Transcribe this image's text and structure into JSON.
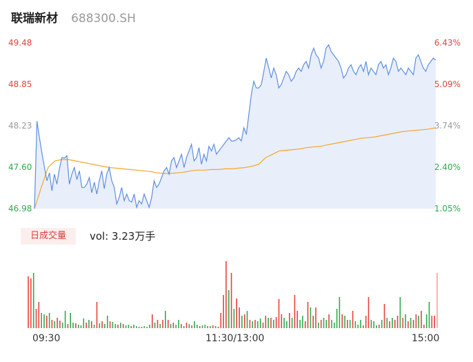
{
  "header": {
    "name": "联瑞新材",
    "code": "688300.SH"
  },
  "chart_data": {
    "type": "line",
    "price_axis": {
      "ticks": [
        "49.48",
        "48.85",
        "48.23",
        "47.60",
        "46.98"
      ],
      "ylim": [
        46.98,
        49.48
      ]
    },
    "pct_axis": {
      "ticks": [
        "6.43%",
        "5.09%",
        "3.74%",
        "2.40%",
        "1.05%"
      ]
    },
    "time_axis": {
      "ticks": [
        "09:30",
        "11:30/13:00",
        "15:00"
      ]
    },
    "series": [
      {
        "role": "price",
        "values": [
          46.98,
          48.3,
          48.05,
          47.82,
          47.6,
          47.4,
          47.52,
          47.25,
          47.5,
          47.35,
          47.58,
          47.75,
          47.74,
          47.78,
          47.35,
          47.5,
          47.6,
          47.42,
          47.55,
          47.3,
          47.3,
          47.35,
          47.45,
          47.22,
          47.38,
          47.2,
          47.4,
          47.55,
          47.28,
          47.5,
          47.6,
          47.4,
          47.3,
          47.05,
          47.15,
          47.3,
          47.1,
          47.2,
          47.1,
          47.08,
          47.2,
          47.0,
          47.1,
          47.05,
          47.2,
          47.1,
          47.0,
          47.15,
          47.4,
          47.3,
          47.35,
          47.45,
          47.55,
          47.6,
          47.5,
          47.7,
          47.75,
          47.6,
          47.7,
          47.8,
          47.6,
          47.75,
          47.85,
          47.95,
          47.7,
          47.75,
          47.9,
          47.65,
          47.8,
          47.7,
          47.92,
          47.85,
          47.95,
          47.8,
          47.85,
          47.9,
          47.95,
          48.0,
          48.05,
          48.0,
          48.0,
          48.02,
          48.05,
          48.0,
          48.2,
          48.1,
          48.4,
          48.7,
          48.9,
          48.8,
          48.8,
          48.85,
          49.05,
          49.25,
          49.1,
          48.95,
          49.1,
          49.0,
          48.8,
          48.85,
          48.95,
          49.05,
          49.0,
          48.9,
          48.95,
          49.05,
          49.1,
          49.05,
          49.15,
          49.2,
          49.1,
          49.3,
          49.4,
          49.3,
          49.25,
          49.1,
          49.2,
          49.4,
          49.45,
          49.35,
          49.3,
          49.25,
          49.2,
          49.1,
          48.95,
          49.0,
          49.1,
          49.15,
          49.05,
          49.0,
          49.1,
          49.15,
          49.05,
          49.2,
          49.0,
          49.1,
          49.05,
          49.0,
          49.15,
          49.2,
          49.1,
          49.15,
          49.0,
          49.1,
          49.25,
          49.2,
          49.05,
          49.1,
          49.05,
          49.0,
          49.1,
          49.05,
          49.0,
          49.25,
          49.3,
          49.2,
          49.1,
          49.05,
          49.15,
          49.2,
          49.25,
          49.22
        ]
      },
      {
        "role": "avg",
        "values": [
          46.98,
          47.3,
          47.6,
          47.7,
          47.72,
          47.72,
          47.7,
          47.68,
          47.66,
          47.64,
          47.62,
          47.6,
          47.59,
          47.58,
          47.57,
          47.56,
          47.55,
          47.54,
          47.52,
          47.51,
          47.51,
          47.52,
          47.53,
          47.55,
          47.56,
          47.56,
          47.57,
          47.57,
          47.58,
          47.58,
          47.59,
          47.6,
          47.62,
          47.65,
          47.75,
          47.8,
          47.85,
          47.86,
          47.87,
          47.88,
          47.9,
          47.91,
          47.92,
          47.94,
          47.96,
          47.98,
          48.0,
          48.02,
          48.04,
          48.05,
          48.06,
          48.08,
          48.1,
          48.12,
          48.14,
          48.15,
          48.16,
          48.17,
          48.18,
          48.2
        ]
      }
    ],
    "volume": {
      "label": "日成交量",
      "summary": "vol: 3.23万手",
      "bars": [
        {
          "v": 75,
          "c": "r"
        },
        {
          "v": 72,
          "c": "r"
        },
        {
          "v": 80,
          "c": "g"
        },
        {
          "v": 28,
          "c": "r"
        },
        {
          "v": 38,
          "c": "r"
        },
        {
          "v": 22,
          "c": "g"
        },
        {
          "v": 20,
          "c": "g"
        },
        {
          "v": 18,
          "c": "r"
        },
        {
          "v": 22,
          "c": "g"
        },
        {
          "v": 12,
          "c": "r"
        },
        {
          "v": 10,
          "c": "g"
        },
        {
          "v": 15,
          "c": "r"
        },
        {
          "v": 11,
          "c": "r"
        },
        {
          "v": 8,
          "c": "g"
        },
        {
          "v": 25,
          "c": "g"
        },
        {
          "v": 6,
          "c": "r"
        },
        {
          "v": 22,
          "c": "g"
        },
        {
          "v": 8,
          "c": "g"
        },
        {
          "v": 7,
          "c": "r"
        },
        {
          "v": 5,
          "c": "g"
        },
        {
          "v": 4,
          "c": "g"
        },
        {
          "v": 14,
          "c": "g"
        },
        {
          "v": 8,
          "c": "r"
        },
        {
          "v": 12,
          "c": "g"
        },
        {
          "v": 10,
          "c": "r"
        },
        {
          "v": 5,
          "c": "g"
        },
        {
          "v": 38,
          "c": "r"
        },
        {
          "v": 7,
          "c": "g"
        },
        {
          "v": 10,
          "c": "r"
        },
        {
          "v": 6,
          "c": "g"
        },
        {
          "v": 18,
          "c": "g"
        },
        {
          "v": 10,
          "c": "r"
        },
        {
          "v": 9,
          "c": "g"
        },
        {
          "v": 6,
          "c": "g"
        },
        {
          "v": 5,
          "c": "r"
        },
        {
          "v": 8,
          "c": "g"
        },
        {
          "v": 6,
          "c": "r"
        },
        {
          "v": 4,
          "c": "g"
        },
        {
          "v": 5,
          "c": "g"
        },
        {
          "v": 3,
          "c": "r"
        },
        {
          "v": 5,
          "c": "g"
        },
        {
          "v": 3,
          "c": "g"
        },
        {
          "v": 2,
          "c": "g"
        },
        {
          "v": 2,
          "c": "r"
        },
        {
          "v": 3,
          "c": "g"
        },
        {
          "v": 2,
          "c": "g"
        },
        {
          "v": 5,
          "c": "g"
        },
        {
          "v": 20,
          "c": "r"
        },
        {
          "v": 8,
          "c": "g"
        },
        {
          "v": 12,
          "c": "r"
        },
        {
          "v": 6,
          "c": "g"
        },
        {
          "v": 12,
          "c": "r"
        },
        {
          "v": 25,
          "c": "g"
        },
        {
          "v": 12,
          "c": "r"
        },
        {
          "v": 6,
          "c": "g"
        },
        {
          "v": 8,
          "c": "r"
        },
        {
          "v": 5,
          "c": "g"
        },
        {
          "v": 12,
          "c": "g"
        },
        {
          "v": 6,
          "c": "r"
        },
        {
          "v": 3,
          "c": "g"
        },
        {
          "v": 8,
          "c": "r"
        },
        {
          "v": 6,
          "c": "g"
        },
        {
          "v": 4,
          "c": "r"
        },
        {
          "v": 10,
          "c": "g"
        },
        {
          "v": 5,
          "c": "g"
        },
        {
          "v": 3,
          "c": "r"
        },
        {
          "v": 4,
          "c": "g"
        },
        {
          "v": 5,
          "c": "g"
        },
        {
          "v": 3,
          "c": "r"
        },
        {
          "v": 3,
          "c": "g"
        },
        {
          "v": 4,
          "c": "r"
        },
        {
          "v": 3,
          "c": "g"
        },
        {
          "v": 2,
          "c": "r"
        },
        {
          "v": 22,
          "c": "r"
        },
        {
          "v": 48,
          "c": "r"
        },
        {
          "v": 97,
          "c": "r"
        },
        {
          "v": 55,
          "c": "g"
        },
        {
          "v": 80,
          "c": "r"
        },
        {
          "v": 28,
          "c": "g"
        },
        {
          "v": 43,
          "c": "r"
        },
        {
          "v": 30,
          "c": "r"
        },
        {
          "v": 18,
          "c": "g"
        },
        {
          "v": 20,
          "c": "r"
        },
        {
          "v": 25,
          "c": "g"
        },
        {
          "v": 12,
          "c": "r"
        },
        {
          "v": 10,
          "c": "g"
        },
        {
          "v": 12,
          "c": "r"
        },
        {
          "v": 10,
          "c": "g"
        },
        {
          "v": 14,
          "c": "g"
        },
        {
          "v": 8,
          "c": "r"
        },
        {
          "v": 18,
          "c": "r"
        },
        {
          "v": 15,
          "c": "g"
        },
        {
          "v": 15,
          "c": "r"
        },
        {
          "v": 12,
          "c": "g"
        },
        {
          "v": 16,
          "c": "r"
        },
        {
          "v": 42,
          "c": "r"
        },
        {
          "v": 20,
          "c": "r"
        },
        {
          "v": 15,
          "c": "g"
        },
        {
          "v": 10,
          "c": "g"
        },
        {
          "v": 22,
          "c": "r"
        },
        {
          "v": 15,
          "c": "g"
        },
        {
          "v": 48,
          "c": "r"
        },
        {
          "v": 25,
          "c": "r"
        },
        {
          "v": 12,
          "c": "g"
        },
        {
          "v": 18,
          "c": "g"
        },
        {
          "v": 10,
          "c": "r"
        },
        {
          "v": 38,
          "c": "r"
        },
        {
          "v": 30,
          "c": "g"
        },
        {
          "v": 18,
          "c": "r"
        },
        {
          "v": 30,
          "c": "r"
        },
        {
          "v": 8,
          "c": "g"
        },
        {
          "v": 12,
          "c": "r"
        },
        {
          "v": 15,
          "c": "g"
        },
        {
          "v": 12,
          "c": "g"
        },
        {
          "v": 20,
          "c": "r"
        },
        {
          "v": 12,
          "c": "g"
        },
        {
          "v": 8,
          "c": "g"
        },
        {
          "v": 28,
          "c": "g"
        },
        {
          "v": 45,
          "c": "g"
        },
        {
          "v": 20,
          "c": "r"
        },
        {
          "v": 18,
          "c": "g"
        },
        {
          "v": 12,
          "c": "r"
        },
        {
          "v": 12,
          "c": "g"
        },
        {
          "v": 25,
          "c": "r"
        },
        {
          "v": 10,
          "c": "g"
        },
        {
          "v": 5,
          "c": "g"
        },
        {
          "v": 12,
          "c": "g"
        },
        {
          "v": 4,
          "c": "r"
        },
        {
          "v": 18,
          "c": "r"
        },
        {
          "v": 45,
          "c": "r"
        },
        {
          "v": 12,
          "c": "g"
        },
        {
          "v": 10,
          "c": "g"
        },
        {
          "v": 4,
          "c": "g"
        },
        {
          "v": 5,
          "c": "r"
        },
        {
          "v": 12,
          "c": "g"
        },
        {
          "v": 35,
          "c": "r"
        },
        {
          "v": 15,
          "c": "g"
        },
        {
          "v": 10,
          "c": "r"
        },
        {
          "v": 15,
          "c": "g"
        },
        {
          "v": 12,
          "c": "r"
        },
        {
          "v": 18,
          "c": "r"
        },
        {
          "v": 45,
          "c": "g"
        },
        {
          "v": 15,
          "c": "r"
        },
        {
          "v": 20,
          "c": "g"
        },
        {
          "v": 10,
          "c": "r"
        },
        {
          "v": 15,
          "c": "g"
        },
        {
          "v": 12,
          "c": "r"
        },
        {
          "v": 20,
          "c": "r"
        },
        {
          "v": 18,
          "c": "g"
        },
        {
          "v": 25,
          "c": "r"
        },
        {
          "v": 5,
          "c": "r"
        },
        {
          "v": 20,
          "c": "g"
        },
        {
          "v": 38,
          "c": "g"
        },
        {
          "v": 18,
          "c": "r"
        },
        {
          "v": 18,
          "c": "r"
        },
        {
          "v": 80,
          "c": "x"
        }
      ]
    },
    "colors": {
      "up": "#e8403c",
      "down": "#2eaa4a",
      "last": "#f3a3a3",
      "price": "#5b8fe0",
      "avg": "#f5a623",
      "fill": "#e9eefb"
    }
  }
}
